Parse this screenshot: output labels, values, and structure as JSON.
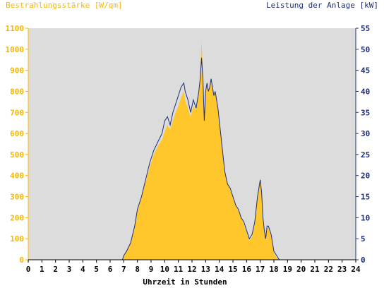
{
  "chart_data": {
    "type": "area",
    "title_left": "Bestrahlungsstärke [W/qm]",
    "title_right": "Leistung der Anlage [kW]",
    "xlabel": "Uhrzeit in Stunden",
    "xlim": [
      0,
      24
    ],
    "x_ticks": [
      "0",
      "1",
      "2",
      "3",
      "4",
      "5",
      "6",
      "7",
      "8",
      "9",
      "10",
      "11",
      "12",
      "13",
      "14",
      "15",
      "16",
      "17",
      "18",
      "19",
      "20",
      "21",
      "22",
      "23",
      "24"
    ],
    "ylim_left": [
      0,
      1100
    ],
    "y_ticks_left": [
      "0",
      "100",
      "200",
      "300",
      "400",
      "500",
      "600",
      "700",
      "800",
      "900",
      "1000",
      "1100"
    ],
    "ylim_right": [
      0,
      55
    ],
    "y_ticks_right": [
      "0",
      "5",
      "10",
      "15",
      "20",
      "25",
      "30",
      "35",
      "40",
      "45",
      "50",
      "55"
    ],
    "grid": false,
    "colors": {
      "plot_background": "#dcdcdc",
      "irradiance": "#ffc72c",
      "power": "#1f2f7a",
      "left_axis": "#f7b500",
      "right_axis": "#1f2f7a"
    },
    "series": [
      {
        "role": "irradiance",
        "x": [
          0,
          6.9,
          7.0,
          7.2,
          7.5,
          7.8,
          8.0,
          8.3,
          8.6,
          8.9,
          9.2,
          9.5,
          9.8,
          10.0,
          10.2,
          10.4,
          10.6,
          10.8,
          11.0,
          11.2,
          11.4,
          11.5,
          11.7,
          11.9,
          12.1,
          12.3,
          12.5,
          12.6,
          12.7,
          12.8,
          12.9,
          13.0,
          13.1,
          13.2,
          13.3,
          13.4,
          13.5,
          13.6,
          13.7,
          13.8,
          13.9,
          14.0,
          14.2,
          14.4,
          14.6,
          14.8,
          15.0,
          15.2,
          15.4,
          15.6,
          15.8,
          16.0,
          16.2,
          16.4,
          16.6,
          16.7,
          16.8,
          16.9,
          17.0,
          17.1,
          17.2,
          17.3,
          17.4,
          17.5,
          17.6,
          17.7,
          17.8,
          17.9,
          18.0,
          18.2,
          18.4,
          18.6,
          24
        ],
        "y": [
          0,
          0,
          20,
          40,
          80,
          150,
          230,
          300,
          370,
          440,
          500,
          540,
          570,
          610,
          640,
          620,
          660,
          700,
          730,
          770,
          800,
          760,
          720,
          680,
          730,
          710,
          800,
          880,
          1040,
          880,
          650,
          820,
          840,
          800,
          830,
          860,
          820,
          780,
          800,
          760,
          720,
          660,
          540,
          420,
          370,
          330,
          300,
          260,
          230,
          200,
          170,
          130,
          90,
          110,
          180,
          240,
          300,
          350,
          380,
          330,
          200,
          130,
          100,
          150,
          150,
          130,
          110,
          70,
          30,
          10,
          0,
          0,
          0
        ],
        "description_hidden": false
      },
      {
        "role": "power",
        "x": [
          0,
          6.9,
          7.0,
          7.2,
          7.5,
          7.8,
          8.0,
          8.3,
          8.6,
          8.9,
          9.2,
          9.5,
          9.8,
          10.0,
          10.2,
          10.4,
          10.6,
          10.8,
          11.0,
          11.2,
          11.4,
          11.5,
          11.7,
          11.9,
          12.1,
          12.3,
          12.5,
          12.6,
          12.7,
          12.8,
          12.9,
          13.0,
          13.1,
          13.2,
          13.3,
          13.4,
          13.5,
          13.6,
          13.7,
          13.8,
          13.9,
          14.0,
          14.2,
          14.4,
          14.6,
          14.8,
          15.0,
          15.2,
          15.4,
          15.6,
          15.8,
          16.0,
          16.2,
          16.4,
          16.6,
          16.7,
          16.8,
          16.9,
          17.0,
          17.1,
          17.2,
          17.3,
          17.4,
          17.5,
          17.6,
          17.7,
          17.8,
          17.9,
          18.0,
          18.2,
          18.4,
          18.6,
          24
        ],
        "y": [
          0,
          0,
          1,
          2,
          4,
          8,
          12,
          15,
          19,
          23,
          26,
          28,
          30,
          33,
          34,
          32,
          35,
          37,
          39,
          41,
          42,
          40,
          38,
          35,
          38,
          36,
          40,
          43,
          48,
          43,
          33,
          40,
          42,
          40,
          41,
          43,
          41,
          39,
          40,
          38,
          36,
          33,
          27,
          21,
          18,
          17,
          15,
          13,
          12,
          10,
          9,
          7,
          5,
          6,
          9,
          12,
          15,
          17,
          19,
          16,
          10,
          7,
          5,
          8,
          8,
          7,
          6,
          4,
          2,
          1,
          0,
          0,
          0
        ]
      }
    ]
  }
}
